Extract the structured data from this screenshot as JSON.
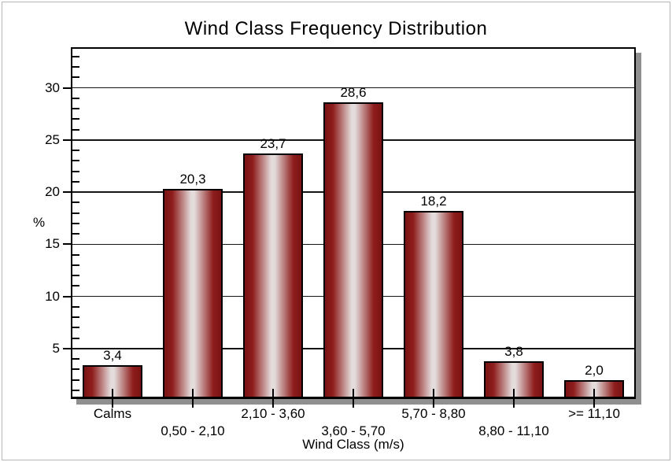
{
  "page": {
    "border_color": "#b6b6b6",
    "background": "#ffffff"
  },
  "chart_data": {
    "type": "bar",
    "title": "Wind Class Frequency Distribution",
    "xlabel": "Wind Class (m/s)",
    "ylabel": "%",
    "categories": [
      "Calms",
      "0,50 - 2,10",
      "2,10 - 3,60",
      "3,60 - 5,70",
      "5,70 - 8,80",
      "8,80 - 11,10",
      ">= 11,10"
    ],
    "values": [
      3.4,
      20.3,
      23.7,
      28.6,
      18.2,
      3.8,
      2.0
    ],
    "value_labels": [
      "3,4",
      "20,3",
      "23,7",
      "28,6",
      "18,2",
      "3,8",
      "2,0"
    ],
    "ylim": [
      0,
      33.8
    ],
    "yticks_major": [
      5,
      10,
      15,
      20,
      25,
      30
    ],
    "ytick_minor_step": 1,
    "grid": "horizontal-major-only",
    "legend": "none",
    "colors": {
      "bar_edge_dark": "#7a1414",
      "bar_dark": "#8e1c1c",
      "bar_highlight": "#e4dcdc",
      "bar_outline": "#000000",
      "axis": "#000000",
      "gridline": "#141414",
      "frame_shadow": "#8f8f8f",
      "text": "#000000"
    }
  }
}
